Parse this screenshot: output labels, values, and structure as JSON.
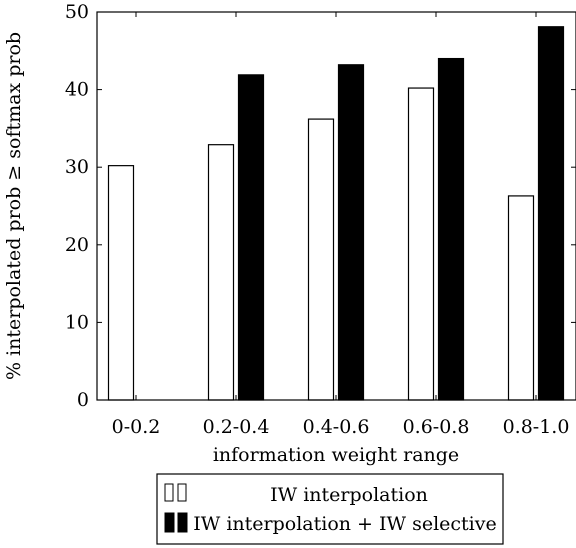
{
  "chart_data": {
    "type": "bar",
    "categories": [
      "0-0.2",
      "0.2-0.4",
      "0.4-0.6",
      "0.6-0.8",
      "0.8-1.0"
    ],
    "series": [
      {
        "name": "IW interpolation",
        "values": [
          30.2,
          32.9,
          36.2,
          40.2,
          26.3
        ],
        "color": "#ffffff"
      },
      {
        "name": "IW interpolation + IW selective",
        "values": [
          0,
          41.9,
          43.2,
          44.0,
          48.1
        ],
        "color": "#000000"
      }
    ],
    "xlabel": "information weight range",
    "ylabel": "% interpolated prob ≥ softmax prob",
    "ylim": [
      0,
      50
    ],
    "yticks": [
      0,
      10,
      20,
      30,
      40,
      50
    ],
    "grid": false,
    "legend_position": "bottom-center"
  }
}
